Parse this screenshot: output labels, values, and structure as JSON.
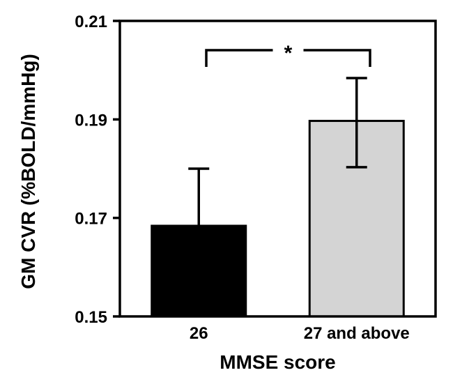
{
  "chart_data": {
    "type": "bar",
    "title": "",
    "xlabel": "MMSE score",
    "ylabel": "GM CVR (%BOLD/mmHg)",
    "categories": [
      "26",
      "27 and above"
    ],
    "values": [
      0.1684,
      0.1897
    ],
    "error_upper": [
      0.0116,
      0.0087
    ],
    "error_lower": [
      0.0,
      0.0094
    ],
    "bar_colors": [
      "#000000",
      "#d4d4d4"
    ],
    "ylim": [
      0.15,
      0.21
    ],
    "yticks": [
      0.15,
      0.17,
      0.19,
      0.21
    ],
    "ytick_labels": [
      "0.15",
      "0.17",
      "0.19",
      "0.21"
    ],
    "grid": false,
    "significance": {
      "pair": [
        0,
        1
      ],
      "label": "*"
    }
  }
}
